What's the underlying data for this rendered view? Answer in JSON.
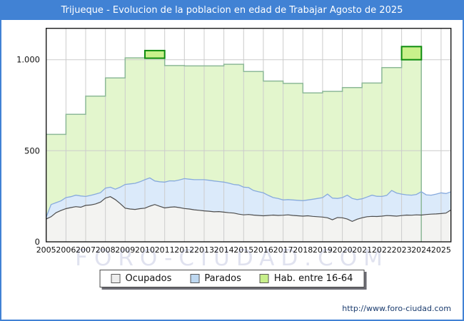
{
  "frame": {
    "title": "Trijueque - Evolucion de la poblacion en edad de Trabajar Agosto de 2025",
    "url": "http://www.foro-ciudad.com",
    "watermark": "FORO-CIUDAD.COM"
  },
  "colors": {
    "frame_blue": "#4182d4",
    "plot_border": "#1a1a1a",
    "grid": "#cccccc",
    "hab_fill": "#e3f6cd",
    "hab_line": "#8db998",
    "hab_highlight_fill": "#c9f18b",
    "hab_highlight_line": "#0f8c0f",
    "ocupados_fill": "#f3f3f1",
    "ocupados_line": "#4d4d4d",
    "parados_fill": "#dbeafa",
    "parados_line": "#87aadd",
    "url_text": "#1b3c6e",
    "watermark_text": "#c7cbe3",
    "tick_text": "#111111"
  },
  "legend": [
    {
      "label": "Ocupados",
      "swatch_fill": "#ededed",
      "swatch_border": "#5a5a5a"
    },
    {
      "label": "Parados",
      "swatch_fill": "#bdd7f0",
      "swatch_border": "#5a5a5a"
    },
    {
      "label": "Hab. entre 16-64",
      "swatch_fill": "#c7ef8a",
      "swatch_border": "#5a5a5a"
    }
  ],
  "chart_data": {
    "type": "area",
    "title": "Trijueque - Evolucion de la poblacion en edad de Trabajar Agosto de 2025",
    "xlabel": "",
    "ylabel": "",
    "grid": true,
    "legend_position": "bottom",
    "x_axis": {
      "min": 2005,
      "max": 2025.5,
      "tick_years": [
        2005,
        2006,
        2007,
        2008,
        2009,
        2010,
        2011,
        2012,
        2013,
        2014,
        2015,
        2016,
        2017,
        2018,
        2019,
        2020,
        2021,
        2022,
        2023,
        2024,
        2025
      ]
    },
    "y_axis": {
      "min": 0,
      "max": 1172,
      "ticks": [
        {
          "value": 0,
          "label": "0"
        },
        {
          "value": 500,
          "label": "500"
        },
        {
          "value": 1000,
          "label": "1.000"
        }
      ]
    },
    "series": {
      "hab_16_64": {
        "label": "Hab. entre 16-64",
        "note": "annual step values, one per year 2005-2023, series ends Jan 2024",
        "start_year": 2005,
        "step_years": 1,
        "values": [
          590,
          700,
          800,
          900,
          1010,
          1050,
          968,
          966,
          966,
          975,
          935,
          883,
          870,
          818,
          826,
          847,
          872,
          957,
          1072
        ]
      },
      "ocupados": {
        "label": "Ocupados",
        "note": "quarterly estimates Jan2005-Aug2025",
        "start_year": 2005,
        "step_years": 0.25,
        "values": [
          125,
          138,
          160,
          172,
          182,
          188,
          193,
          190,
          200,
          202,
          208,
          218,
          240,
          248,
          232,
          210,
          185,
          180,
          178,
          182,
          185,
          196,
          205,
          195,
          186,
          190,
          192,
          188,
          183,
          180,
          176,
          173,
          170,
          168,
          165,
          166,
          163,
          160,
          158,
          152,
          148,
          150,
          147,
          145,
          143,
          145,
          147,
          145,
          146,
          148,
          145,
          143,
          141,
          143,
          140,
          138,
          136,
          132,
          121,
          133,
          132,
          125,
          112,
          124,
          132,
          138,
          140,
          139,
          141,
          144,
          143,
          141,
          144,
          147,
          146,
          148,
          147,
          150,
          152,
          153,
          155,
          158,
          175
        ]
      },
      "parados": {
        "label": "Parados",
        "note": "quarterly estimates Jan2005-Aug2025, stacked on ocupados",
        "stacked_on": "ocupados",
        "start_year": 2005,
        "step_years": 0.25,
        "values": [
          10,
          67,
          55,
          53,
          61,
          60,
          63,
          62,
          49,
          53,
          54,
          52,
          55,
          52,
          57,
          90,
          130,
          138,
          143,
          148,
          156,
          155,
          129,
          135,
          142,
          145,
          142,
          152,
          164,
          164,
          165,
          168,
          171,
          170,
          169,
          165,
          165,
          162,
          157,
          160,
          152,
          148,
          135,
          130,
          126,
          110,
          96,
          93,
          84,
          84,
          85,
          85,
          85,
          87,
          94,
          100,
          107,
          130,
          119,
          105,
          111,
          131,
          126,
          108,
          104,
          108,
          116,
          111,
          108,
          111,
          139,
          127,
          118,
          111,
          110,
          112,
          128,
          108,
          104,
          109,
          114,
          107,
          100
        ]
      }
    },
    "highlights": [
      {
        "year": 2010,
        "value": 1050,
        "box_bottom_value": 1008
      },
      {
        "year": 2023,
        "value": 1072,
        "box_bottom_value": 1000
      }
    ]
  }
}
